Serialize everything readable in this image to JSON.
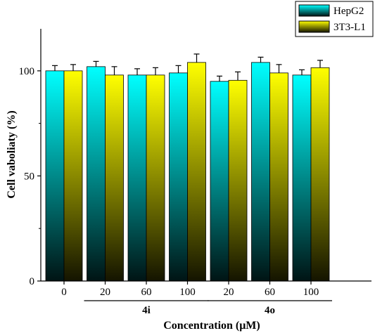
{
  "chart_data": {
    "type": "bar",
    "xlabel": "Concentration (μM)",
    "ylabel": "Cell vaboliaty (%)",
    "ylim": [
      0,
      120
    ],
    "yticks": [
      0,
      50,
      100
    ],
    "categories": [
      "0",
      "20",
      "60",
      "100",
      "20",
      "60",
      "100"
    ],
    "groups": [
      {
        "label": "4i",
        "categories": [
          "20",
          "60",
          "100"
        ]
      },
      {
        "label": "4o",
        "categories": [
          "20",
          "60",
          "100"
        ]
      }
    ],
    "series": [
      {
        "name": "HepG2",
        "color_top": "#00ffff",
        "color_bottom": "#001414",
        "values": [
          100,
          102,
          98,
          99,
          95,
          104,
          98
        ],
        "errors": [
          2.5,
          2.5,
          3,
          3.5,
          2.5,
          2.5,
          2.5
        ]
      },
      {
        "name": "3T3-L1",
        "color_top": "#ffff00",
        "color_bottom": "#141400",
        "values": [
          100,
          98,
          98,
          104,
          95.5,
          99,
          101.5
        ],
        "errors": [
          3,
          4,
          3.5,
          4,
          4,
          4,
          3.5
        ]
      }
    ],
    "legend_position": "top-right",
    "grid": false
  }
}
